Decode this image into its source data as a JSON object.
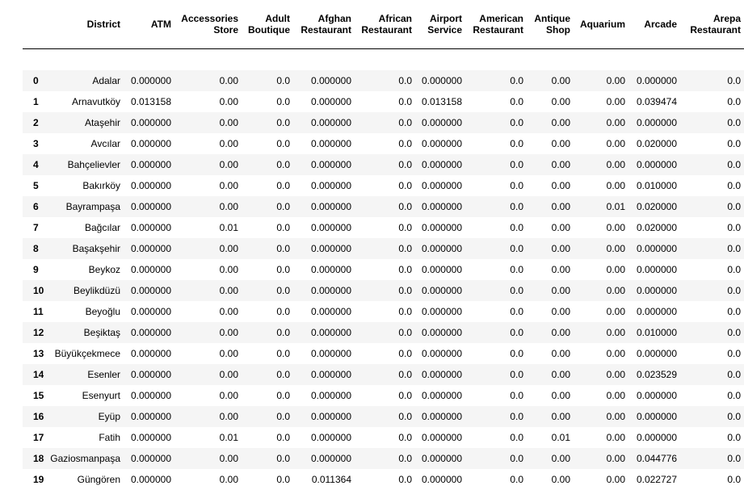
{
  "columns": [
    "District",
    "ATM",
    "Accessories Store",
    "Adult Boutique",
    "Afghan Restaurant",
    "African Restaurant",
    "Airport Service",
    "American Restaurant",
    "Antique Shop",
    "Aquarium",
    "Arcade",
    "Arepa Restaurant"
  ],
  "rows": [
    {
      "index": "0",
      "cells": [
        "Adalar",
        "0.000000",
        "0.00",
        "0.0",
        "0.000000",
        "0.0",
        "0.000000",
        "0.0",
        "0.00",
        "0.00",
        "0.000000",
        "0.0"
      ]
    },
    {
      "index": "1",
      "cells": [
        "Arnavutköy",
        "0.013158",
        "0.00",
        "0.0",
        "0.000000",
        "0.0",
        "0.013158",
        "0.0",
        "0.00",
        "0.00",
        "0.039474",
        "0.0"
      ]
    },
    {
      "index": "2",
      "cells": [
        "Ataşehir",
        "0.000000",
        "0.00",
        "0.0",
        "0.000000",
        "0.0",
        "0.000000",
        "0.0",
        "0.00",
        "0.00",
        "0.000000",
        "0.0"
      ]
    },
    {
      "index": "3",
      "cells": [
        "Avcılar",
        "0.000000",
        "0.00",
        "0.0",
        "0.000000",
        "0.0",
        "0.000000",
        "0.0",
        "0.00",
        "0.00",
        "0.020000",
        "0.0"
      ]
    },
    {
      "index": "4",
      "cells": [
        "Bahçelievler",
        "0.000000",
        "0.00",
        "0.0",
        "0.000000",
        "0.0",
        "0.000000",
        "0.0",
        "0.00",
        "0.00",
        "0.000000",
        "0.0"
      ]
    },
    {
      "index": "5",
      "cells": [
        "Bakırköy",
        "0.000000",
        "0.00",
        "0.0",
        "0.000000",
        "0.0",
        "0.000000",
        "0.0",
        "0.00",
        "0.00",
        "0.010000",
        "0.0"
      ]
    },
    {
      "index": "6",
      "cells": [
        "Bayrampaşa",
        "0.000000",
        "0.00",
        "0.0",
        "0.000000",
        "0.0",
        "0.000000",
        "0.0",
        "0.00",
        "0.01",
        "0.020000",
        "0.0"
      ]
    },
    {
      "index": "7",
      "cells": [
        "Bağcılar",
        "0.000000",
        "0.01",
        "0.0",
        "0.000000",
        "0.0",
        "0.000000",
        "0.0",
        "0.00",
        "0.00",
        "0.020000",
        "0.0"
      ]
    },
    {
      "index": "8",
      "cells": [
        "Başakşehir",
        "0.000000",
        "0.00",
        "0.0",
        "0.000000",
        "0.0",
        "0.000000",
        "0.0",
        "0.00",
        "0.00",
        "0.000000",
        "0.0"
      ]
    },
    {
      "index": "9",
      "cells": [
        "Beykoz",
        "0.000000",
        "0.00",
        "0.0",
        "0.000000",
        "0.0",
        "0.000000",
        "0.0",
        "0.00",
        "0.00",
        "0.000000",
        "0.0"
      ]
    },
    {
      "index": "10",
      "cells": [
        "Beylikdüzü",
        "0.000000",
        "0.00",
        "0.0",
        "0.000000",
        "0.0",
        "0.000000",
        "0.0",
        "0.00",
        "0.00",
        "0.000000",
        "0.0"
      ]
    },
    {
      "index": "11",
      "cells": [
        "Beyoğlu",
        "0.000000",
        "0.00",
        "0.0",
        "0.000000",
        "0.0",
        "0.000000",
        "0.0",
        "0.00",
        "0.00",
        "0.000000",
        "0.0"
      ]
    },
    {
      "index": "12",
      "cells": [
        "Beşiktaş",
        "0.000000",
        "0.00",
        "0.0",
        "0.000000",
        "0.0",
        "0.000000",
        "0.0",
        "0.00",
        "0.00",
        "0.010000",
        "0.0"
      ]
    },
    {
      "index": "13",
      "cells": [
        "Büyükçekmece",
        "0.000000",
        "0.00",
        "0.0",
        "0.000000",
        "0.0",
        "0.000000",
        "0.0",
        "0.00",
        "0.00",
        "0.000000",
        "0.0"
      ]
    },
    {
      "index": "14",
      "cells": [
        "Esenler",
        "0.000000",
        "0.00",
        "0.0",
        "0.000000",
        "0.0",
        "0.000000",
        "0.0",
        "0.00",
        "0.00",
        "0.023529",
        "0.0"
      ]
    },
    {
      "index": "15",
      "cells": [
        "Esenyurt",
        "0.000000",
        "0.00",
        "0.0",
        "0.000000",
        "0.0",
        "0.000000",
        "0.0",
        "0.00",
        "0.00",
        "0.000000",
        "0.0"
      ]
    },
    {
      "index": "16",
      "cells": [
        "Eyüp",
        "0.000000",
        "0.00",
        "0.0",
        "0.000000",
        "0.0",
        "0.000000",
        "0.0",
        "0.00",
        "0.00",
        "0.000000",
        "0.0"
      ]
    },
    {
      "index": "17",
      "cells": [
        "Fatih",
        "0.000000",
        "0.01",
        "0.0",
        "0.000000",
        "0.0",
        "0.000000",
        "0.0",
        "0.01",
        "0.00",
        "0.000000",
        "0.0"
      ]
    },
    {
      "index": "18",
      "cells": [
        "Gaziosmanpaşa",
        "0.000000",
        "0.00",
        "0.0",
        "0.000000",
        "0.0",
        "0.000000",
        "0.0",
        "0.00",
        "0.00",
        "0.044776",
        "0.0"
      ]
    },
    {
      "index": "19",
      "cells": [
        "Güngören",
        "0.000000",
        "0.00",
        "0.0",
        "0.011364",
        "0.0",
        "0.000000",
        "0.0",
        "0.00",
        "0.00",
        "0.022727",
        "0.0"
      ]
    }
  ]
}
